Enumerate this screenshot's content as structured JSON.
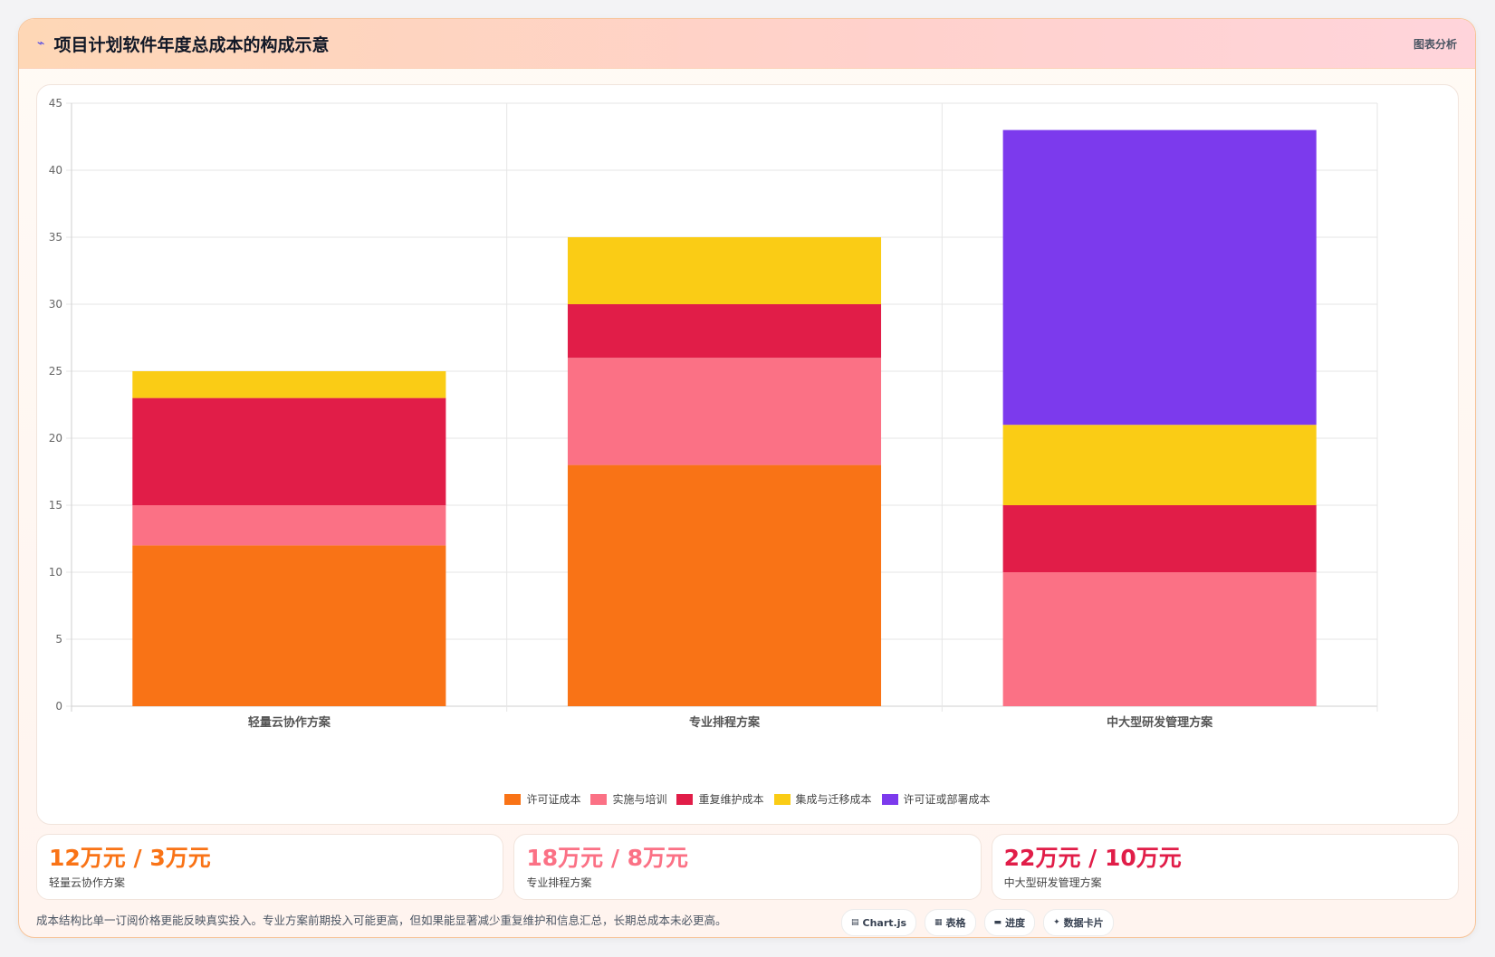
{
  "header": {
    "icon": "chart-line-icon",
    "title": "项目计划软件年度总成本的构成示意",
    "link_label": "图表分析"
  },
  "chart_data": {
    "type": "bar",
    "stacked": true,
    "categories": [
      "轻量云协作方案",
      "专业排程方案",
      "中大型研发管理方案"
    ],
    "series": [
      {
        "name": "许可证成本",
        "color": "#f97316",
        "values": [
          12,
          18,
          0
        ]
      },
      {
        "name": "实施与培训",
        "color": "#fb7185",
        "values": [
          3,
          8,
          10
        ]
      },
      {
        "name": "重复维护成本",
        "color": "#e11d48",
        "values": [
          8,
          4,
          5
        ]
      },
      {
        "name": "集成与迁移成本",
        "color": "#facc15",
        "values": [
          2,
          5,
          6
        ]
      },
      {
        "name": "许可证或部署成本",
        "color": "#7c3aed",
        "values": [
          0,
          0,
          22
        ]
      }
    ],
    "ylim": [
      0,
      45
    ],
    "yticks": [
      0,
      5,
      10,
      15,
      20,
      25,
      30,
      35,
      40,
      45
    ],
    "grid": true,
    "legend_position": "bottom"
  },
  "stats": [
    {
      "value": "12万元 / 3万元",
      "label": "轻量云协作方案",
      "color": "#f97316"
    },
    {
      "value": "18万元 / 8万元",
      "label": "专业排程方案",
      "color": "#fb7185"
    },
    {
      "value": "22万元 / 10万元",
      "label": "中大型研发管理方案",
      "color": "#e11d48"
    }
  ],
  "footer": {
    "note": "成本结构比单一订阅价格更能反映真实投入。专业方案前期投入可能更高，但如果能显著减少重复维护和信息汇总，长期总成本未必更高。",
    "tags": [
      {
        "icon": "chart-icon",
        "glyph": "▤",
        "label": "Chart.js"
      },
      {
        "icon": "table-icon",
        "glyph": "▦",
        "label": "表格"
      },
      {
        "icon": "progress-icon",
        "glyph": "▬",
        "label": "进度"
      },
      {
        "icon": "sparkle-icon",
        "glyph": "✦",
        "label": "数据卡片"
      }
    ]
  }
}
